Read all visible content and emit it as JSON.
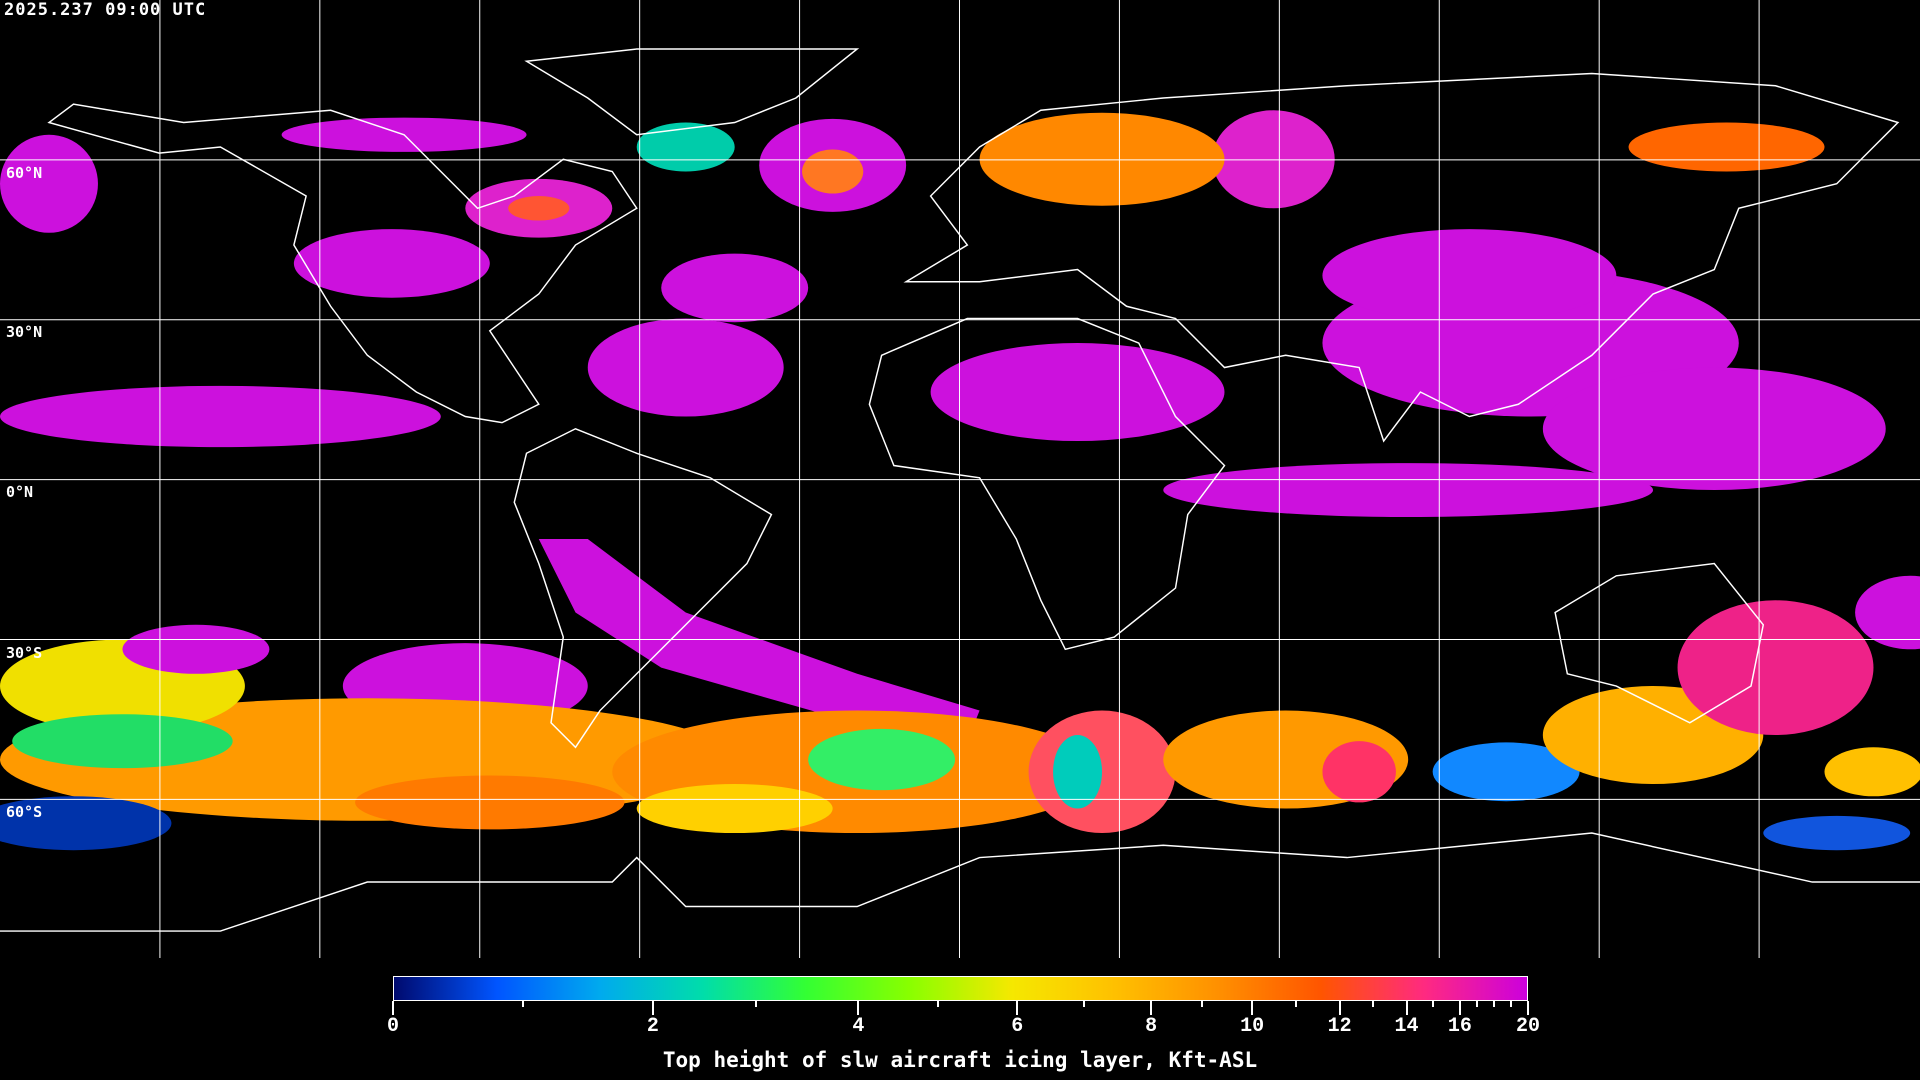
{
  "timestamp": "2025.237 09:00 UTC",
  "latitude_labels": [
    "60°N",
    "30°N",
    "0°N",
    "30°S",
    "60°S"
  ],
  "colorbar": {
    "title": "Top height of slw aircraft icing layer, Kft-ASL",
    "range": [
      0,
      20
    ],
    "major_ticks": [
      "0",
      "2",
      "4",
      "6",
      "8",
      "10",
      "12",
      "14",
      "16",
      "20"
    ],
    "minor_ticks": [
      1,
      3,
      5,
      7,
      9,
      11,
      13,
      15,
      17,
      18,
      19
    ],
    "colors": [
      "#000a6e",
      "#0055ff",
      "#00aaee",
      "#00ddaa",
      "#33ff33",
      "#88ff00",
      "#f5e800",
      "#ffc000",
      "#ff9000",
      "#ff5500",
      "#ff2a80",
      "#cc00dd"
    ]
  },
  "grid": {
    "latitude_step_deg": 30,
    "longitude_step_deg": 30,
    "color": "#ffffff"
  }
}
